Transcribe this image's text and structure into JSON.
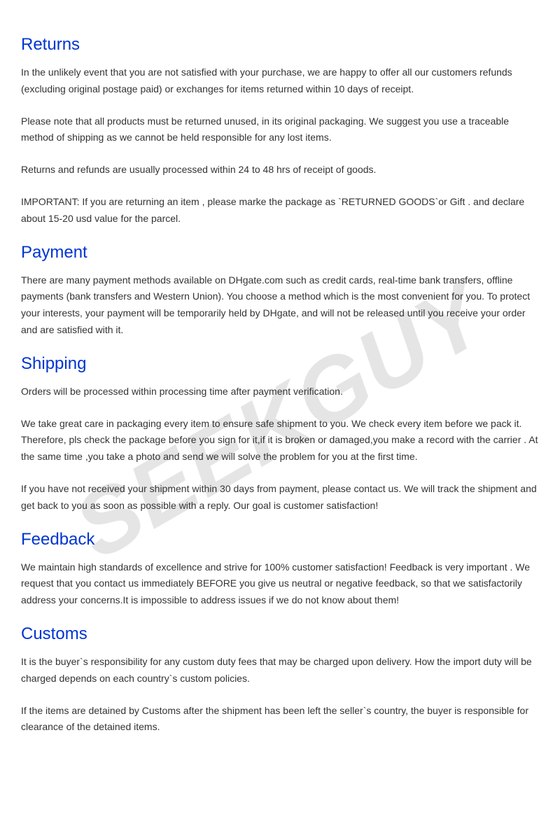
{
  "watermark": "SEEKGUY",
  "colors": {
    "heading": "#0034d2",
    "body_text": "#333333",
    "watermark": "#e5e5e5",
    "background": "#ffffff"
  },
  "typography": {
    "heading_fontsize": 24,
    "body_fontsize": 14,
    "font_family": "Arial"
  },
  "sections": [
    {
      "heading": "Returns",
      "paragraphs": [
        "In the unlikely event that you are not satisfied with your purchase, we are happy to offer all our customers refunds (excluding original postage paid) or exchanges for items returned within 10 days of receipt.",
        "Please note that all products must be returned unused, in its original packaging. We suggest you use a traceable method of shipping as we cannot be held responsible for any lost items.",
        "Returns and refunds are usually processed within 24 to 48 hrs of receipt of goods.",
        "IMPORTANT: If you are returning an item , please marke the package as `RETURNED GOODS`or Gift . and declare about 15-20 usd value for the parcel."
      ]
    },
    {
      "heading": "Payment",
      "paragraphs": [
        "There are many payment methods available on DHgate.com such as credit cards, real-time bank transfers, offline payments (bank transfers and Western Union). You choose a method which is the most convenient for you. To protect your interests, your payment will be temporarily held by DHgate, and will not be released until you receive your order and are satisfied with it."
      ]
    },
    {
      "heading": "Shipping",
      "paragraphs": [
        "Orders will be processed within processing time after payment verification.",
        "We take great care in packaging every item to ensure safe shipment to you. We check every item before we pack it. Therefore, pls check the package before you sign for it,if it is broken or damaged,you make a record with the carrier . At the same time ,you take a photo and send we will solve the problem for you at the first time.",
        "If you have not received your shipment within 30 days from payment, please contact us. We will track the shipment and get back to you as soon as possible with a reply. Our goal is customer satisfaction!"
      ]
    },
    {
      "heading": "Feedback",
      "paragraphs": [
        "We maintain high standards of excellence and strive for 100% customer satisfaction! Feedback is very important .  We request that you contact us immediately BEFORE you give us neutral or negative feedback, so that we satisfactorily address your concerns.It is impossible to address issues if we do not know about them!"
      ]
    },
    {
      "heading": "Customs",
      "paragraphs": [
        "It is the buyer`s responsibility for any custom duty fees that may be charged upon delivery. How the import duty will be  charged depends on each country`s custom policies.",
        "If the items are detained by Customs after the shipment has been left the seller`s country, the buyer is responsible for clearance of the detained items."
      ]
    }
  ]
}
